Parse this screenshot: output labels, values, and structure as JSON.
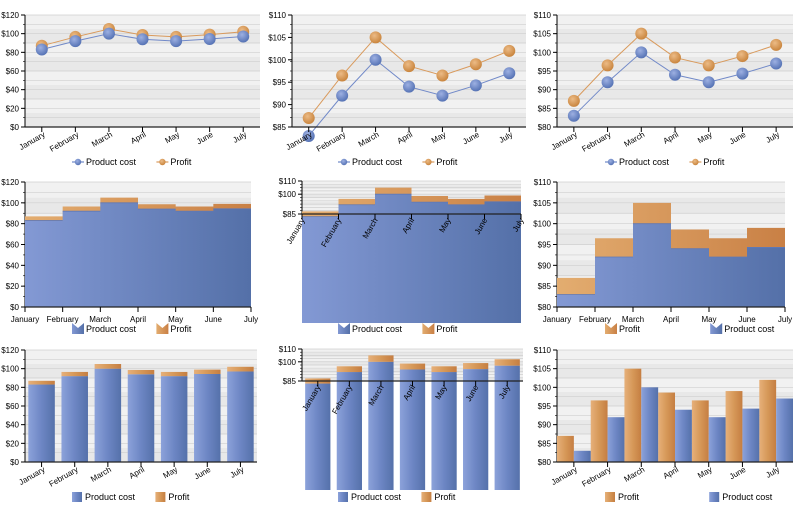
{
  "chart_data": [
    {
      "id": "line-full",
      "type": "line",
      "categories": [
        "January",
        "February",
        "March",
        "April",
        "May",
        "June",
        "July"
      ],
      "series": [
        {
          "name": "Product cost",
          "values": [
            83,
            92,
            100,
            94,
            92,
            94.3,
            97
          ]
        },
        {
          "name": "Profit",
          "values": [
            87,
            96.5,
            105,
            98.6,
            96.5,
            99,
            102
          ]
        }
      ],
      "ylim": [
        0,
        120
      ],
      "yticks": [
        "$0",
        "$20",
        "$40",
        "$60",
        "$80",
        "$100",
        "$120"
      ],
      "legend": [
        "Product cost",
        "Profit"
      ],
      "grid": true
    },
    {
      "id": "line-85",
      "type": "line",
      "categories": [
        "January",
        "February",
        "March",
        "April",
        "May",
        "June",
        "July"
      ],
      "series": [
        {
          "name": "Product cost",
          "values": [
            83,
            92,
            100,
            94,
            92,
            94.3,
            97
          ]
        },
        {
          "name": "Profit",
          "values": [
            87,
            96.5,
            105,
            98.6,
            96.5,
            99,
            102
          ]
        }
      ],
      "ylim": [
        85,
        110
      ],
      "yticks": [
        "$85",
        "$90",
        "$95",
        "$100",
        "$105",
        "$110"
      ],
      "legend": [
        "Product cost",
        "Profit"
      ],
      "grid": true
    },
    {
      "id": "line-80",
      "type": "line",
      "categories": [
        "January",
        "February",
        "March",
        "April",
        "May",
        "June",
        "July"
      ],
      "series": [
        {
          "name": "Product cost",
          "values": [
            83,
            92,
            100,
            94,
            92,
            94.3,
            97
          ]
        },
        {
          "name": "Profit",
          "values": [
            87,
            96.5,
            105,
            98.6,
            96.5,
            99,
            102
          ]
        }
      ],
      "ylim": [
        80,
        110
      ],
      "yticks": [
        "$80",
        "$85",
        "$90",
        "$95",
        "$100",
        "$105",
        "$110"
      ],
      "legend": [
        "Product cost",
        "Profit"
      ],
      "grid": true
    },
    {
      "id": "area-full",
      "type": "area",
      "stacked": true,
      "categories": [
        "January",
        "February",
        "March",
        "April",
        "May",
        "June",
        "July"
      ],
      "series": [
        {
          "name": "Product cost",
          "values": [
            83,
            92,
            100,
            94,
            92,
            94.3,
            97
          ]
        },
        {
          "name": "Profit",
          "values": [
            4,
            4.5,
            5,
            4.6,
            4.5,
            4.7,
            5
          ]
        }
      ],
      "ylim": [
        0,
        120
      ],
      "yticks": [
        "$0",
        "$20",
        "$40",
        "$60",
        "$80",
        "$100",
        "$120"
      ],
      "legend": [
        "Product cost",
        "Profit"
      ],
      "grid": true
    },
    {
      "id": "area-85",
      "type": "area",
      "stacked": true,
      "categories": [
        "January",
        "February",
        "March",
        "April",
        "May",
        "June",
        "July"
      ],
      "series": [
        {
          "name": "Product cost",
          "values": [
            83,
            92,
            100,
            94,
            92,
            94.3,
            97
          ]
        },
        {
          "name": "Profit",
          "values": [
            4,
            4.5,
            5,
            4.6,
            4.5,
            4.7,
            5
          ]
        }
      ],
      "ylim": [
        85,
        110
      ],
      "yticks": [
        "$85",
        "$100",
        "$110"
      ],
      "legend": [
        "Product cost",
        "Profit"
      ],
      "grid": true
    },
    {
      "id": "area-80",
      "type": "area",
      "stacked": true,
      "categories": [
        "January",
        "February",
        "March",
        "April",
        "May",
        "June",
        "July"
      ],
      "series": [
        {
          "name": "Product cost",
          "values": [
            83,
            92,
            100,
            94,
            92,
            94.3,
            97
          ]
        },
        {
          "name": "Profit",
          "values": [
            4,
            4.5,
            5,
            4.6,
            4.5,
            4.7,
            5
          ]
        }
      ],
      "ylim": [
        80,
        110
      ],
      "yticks": [
        "$80",
        "$85",
        "$90",
        "$95",
        "$100",
        "$105",
        "$110"
      ],
      "legend": [
        "Profit",
        "Product cost"
      ],
      "grid": true
    },
    {
      "id": "bar-full",
      "type": "bar",
      "stacked": true,
      "categories": [
        "January",
        "February",
        "March",
        "April",
        "May",
        "June",
        "July"
      ],
      "series": [
        {
          "name": "Product cost",
          "values": [
            83,
            92,
            100,
            94,
            92,
            94.3,
            97
          ]
        },
        {
          "name": "Profit",
          "values": [
            4,
            4.5,
            5,
            4.6,
            4.5,
            4.7,
            5
          ]
        }
      ],
      "ylim": [
        0,
        120
      ],
      "yticks": [
        "$0",
        "$20",
        "$40",
        "$60",
        "$80",
        "$100",
        "$120"
      ],
      "legend": [
        "Product cost",
        "Profit"
      ],
      "grid": true
    },
    {
      "id": "bar-85",
      "type": "bar",
      "stacked": true,
      "categories": [
        "January",
        "February",
        "March",
        "April",
        "May",
        "June",
        "July"
      ],
      "series": [
        {
          "name": "Product cost",
          "values": [
            83,
            92,
            100,
            94,
            92,
            94.3,
            97
          ]
        },
        {
          "name": "Profit",
          "values": [
            4,
            4.5,
            5,
            4.6,
            4.5,
            4.7,
            5
          ]
        }
      ],
      "ylim": [
        85,
        110
      ],
      "yticks": [
        "$85",
        "$100",
        "$110"
      ],
      "legend": [
        "Product cost",
        "Profit"
      ],
      "grid": true
    },
    {
      "id": "bar-grouped-80",
      "type": "bar",
      "stacked": false,
      "categories": [
        "January",
        "February",
        "March",
        "April",
        "May",
        "June",
        "July"
      ],
      "series": [
        {
          "name": "Profit",
          "values": [
            87,
            96.5,
            105,
            98.6,
            96.5,
            99,
            102
          ]
        },
        {
          "name": "Product cost",
          "values": [
            83,
            92,
            100,
            94,
            92,
            94.3,
            97
          ]
        }
      ],
      "ylim": [
        80,
        110
      ],
      "yticks": [
        "$80",
        "$85",
        "$90",
        "$95",
        "$100",
        "$105",
        "$110"
      ],
      "legend": [
        "Profit",
        "Product cost"
      ],
      "grid": true
    }
  ],
  "colors": {
    "product_cost": "#6b84c4",
    "product_cost_dark": "#5470a8",
    "product_cost_light": "#8399d4",
    "profit": "#d4945a",
    "profit_light": "#e0a868",
    "profit_dark": "#c98045",
    "plot_band_a": "#f0f0f0",
    "plot_band_b": "#e6e6e6",
    "gridline": "#c8c8c8"
  }
}
